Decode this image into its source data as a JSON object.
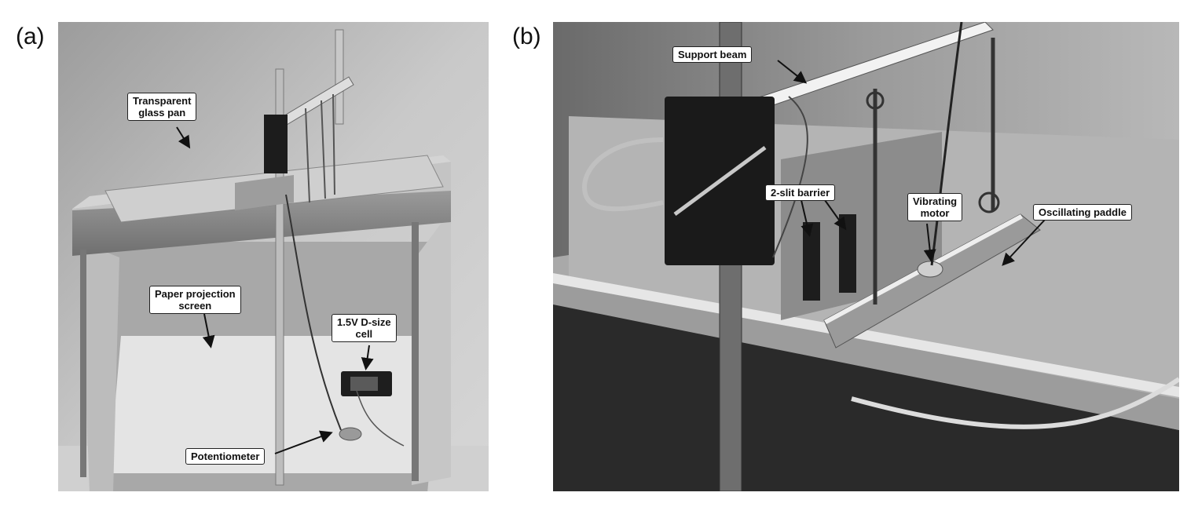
{
  "panels": {
    "a": {
      "letter": "(a)",
      "labels": {
        "glass_pan": "Transparent\nglass pan",
        "projection_screen": "Paper projection\nscreen",
        "d_cell": "1.5V D-size\ncell",
        "potentiometer": "Potentiometer"
      }
    },
    "b": {
      "letter": "(b)",
      "labels": {
        "support_beam": "Support beam",
        "slit_barrier": "2-slit barrier",
        "vibrating_motor": "Vibrating\nmotor",
        "oscillating_paddle": "Oscillating paddle"
      }
    }
  },
  "colors": {
    "background": "#ffffff",
    "photo_backdrop": "#b9b9b9",
    "wood": "#8a8a8a",
    "dark": "#1a1a1a"
  }
}
